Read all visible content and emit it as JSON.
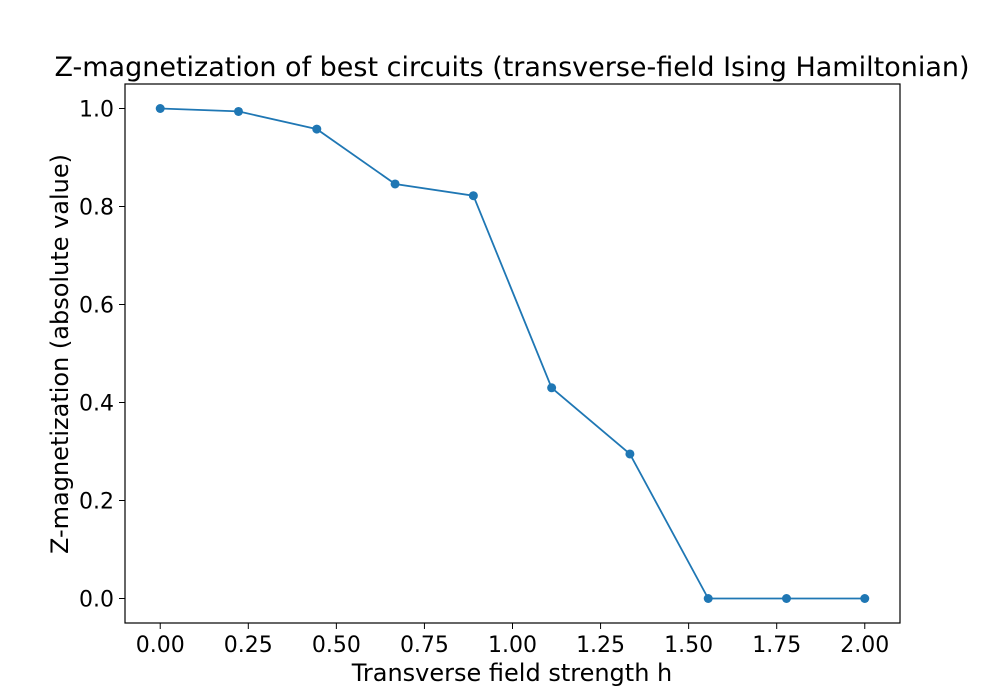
{
  "chart_data": {
    "type": "line",
    "title": "Z-magnetization of best circuits (transverse-field Ising Hamiltonian)",
    "xlabel": "Transverse field strength h",
    "ylabel": "Z-magnetization (absolute value)",
    "x": [
      0.0,
      0.2222,
      0.4444,
      0.6667,
      0.8889,
      1.1111,
      1.3333,
      1.5556,
      1.7778,
      2.0
    ],
    "series": [
      {
        "values": [
          1.0,
          0.994,
          0.958,
          0.846,
          0.822,
          0.43,
          0.295,
          0.0,
          0.0,
          0.0
        ],
        "color": "#1f77b4"
      }
    ],
    "xlim": [
      -0.1,
      2.1
    ],
    "ylim": [
      -0.05,
      1.05
    ],
    "xticks": [
      0.0,
      0.25,
      0.5,
      0.75,
      1.0,
      1.25,
      1.5,
      1.75,
      2.0
    ],
    "xtick_labels": [
      "0.00",
      "0.25",
      "0.50",
      "0.75",
      "1.00",
      "1.25",
      "1.50",
      "1.75",
      "2.00"
    ],
    "yticks": [
      0.0,
      0.2,
      0.4,
      0.6,
      0.8,
      1.0
    ],
    "ytick_labels": [
      "0.0",
      "0.2",
      "0.4",
      "0.6",
      "0.8",
      "1.0"
    ],
    "grid": false,
    "legend": "none",
    "markers": true
  }
}
